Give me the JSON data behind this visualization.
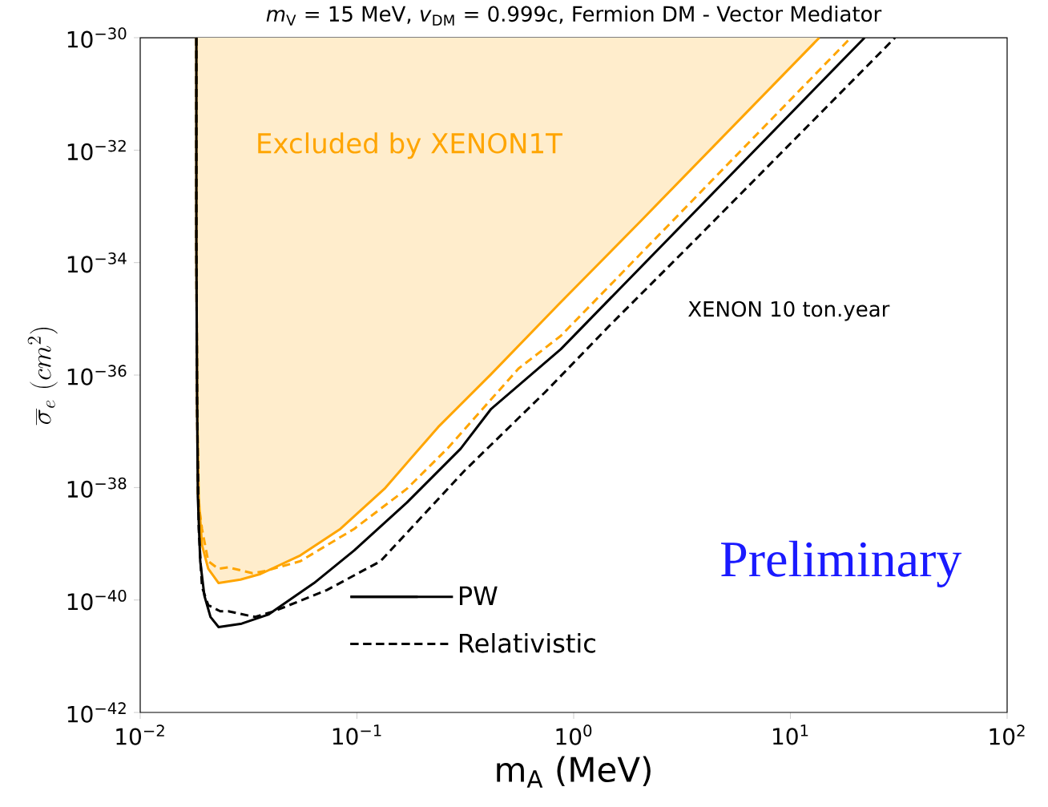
{
  "chart_data": {
    "type": "line",
    "title": "*m*$_{V}$ = 15 MeV, *v*$_{DM}$ = 0.999c, Fermion DM - Vector Mediator",
    "xlabel": "m$_{A}$ (MeV)",
    "ylabel": "\\overline{\\sigma}_e\\ (cm^2)",
    "log": "xy",
    "xlim": [
      0.01,
      100
    ],
    "ylim": [
      1e-42,
      1e-30
    ],
    "xticks": [
      {
        "value": 0.01,
        "label": "10$^{−2}$"
      },
      {
        "value": 0.1,
        "label": "10$^{−1}$"
      },
      {
        "value": 1,
        "label": "10$^{0}$"
      },
      {
        "value": 10,
        "label": "10$^{1}$"
      },
      {
        "value": 100,
        "label": "10$^{2}$"
      }
    ],
    "yticks": [
      {
        "value": 1e-42,
        "label": "10$^{−42}$"
      },
      {
        "value": 1e-40,
        "label": "10$^{−40}$"
      },
      {
        "value": 1e-38,
        "label": "10$^{−38}$"
      },
      {
        "value": 1e-36,
        "label": "10$^{−36}$"
      },
      {
        "value": 1e-34,
        "label": "10$^{−34}$"
      },
      {
        "value": 1e-32,
        "label": "10$^{−32}$"
      },
      {
        "value": 1e-30,
        "label": "10$^{−30}$"
      }
    ],
    "legend": "bottom left",
    "series": [
      {
        "type": "area",
        "color": "#ffa500",
        "line_style": "solid",
        "x": [
          0.01816,
          0.01816,
          0.0183,
          0.01862,
          0.01928,
          0.0206,
          0.023,
          0.029,
          0.0359,
          0.0548,
          0.0839,
          0.134,
          0.237,
          0.416,
          0.851,
          2.05,
          13.6
        ],
        "values": [
          1e-30,
          2.48e-34,
          3.5e-37,
          6.8e-39,
          9.5e-40,
          3.6e-40,
          2e-40,
          2.3e-40,
          2.9e-40,
          6.2e-40,
          1.84e-39,
          9.5e-39,
          1.19e-37,
          1.04e-36,
          1.8e-35,
          5.6e-34,
          1e-30
        ]
      },
      {
        "color": "#ffa500",
        "line_style": "dashed",
        "x": [
          0.01816,
          0.01816,
          0.0183,
          0.01845,
          0.01928,
          0.0206,
          0.0229,
          0.0255,
          0.033,
          0.038,
          0.0548,
          0.0971,
          0.17,
          0.261,
          0.556,
          0.873,
          19.0
        ],
        "values": [
          1e-30,
          2.48e-34,
          3.5e-37,
          6.8e-39,
          1.84e-39,
          4.9e-40,
          3.6e-40,
          3.8e-40,
          3e-40,
          3.3e-40,
          4.9e-40,
          1.84e-39,
          9.5e-39,
          4.9e-38,
          1.3e-36,
          5e-36,
          1e-30
        ]
      },
      {
        "name": "PW",
        "color": "#000000",
        "line_style": "solid",
        "x": [
          0.01816,
          0.01816,
          0.0183,
          0.01845,
          0.01892,
          0.01977,
          0.0211,
          0.023,
          0.0294,
          0.039,
          0.0634,
          0.0971,
          0.17,
          0.301,
          0.416,
          0.873,
          22.0
        ],
        "values": [
          1e-30,
          2.48e-34,
          3.5e-37,
          6.8e-39,
          4.9e-40,
          1.2e-40,
          5e-41,
          3.3e-41,
          3.8e-41,
          5.5e-41,
          2e-40,
          7.6e-40,
          5.4e-39,
          4.9e-38,
          2.5e-37,
          2.9e-36,
          1e-30
        ]
      },
      {
        "name": "Relativistic",
        "color": "#000000",
        "line_style": "dashed",
        "x": [
          0.01816,
          0.01816,
          0.0183,
          0.01862,
          0.01928,
          0.0206,
          0.0234,
          0.0255,
          0.0338,
          0.0414,
          0.0726,
          0.1285,
          0.314,
          0.736,
          1.455,
          3.8,
          30.4
        ],
        "values": [
          1e-30,
          2.48e-34,
          3.5e-37,
          1.84e-39,
          1.7e-40,
          8.1e-41,
          6.3e-41,
          6.3e-41,
          5e-41,
          6.3e-41,
          1.5e-40,
          4.9e-40,
          2e-38,
          4.9e-37,
          7.4e-36,
          3e-34,
          1e-30
        ]
      }
    ],
    "annotations": [
      "Excluded by XENON1T",
      "XENON 10 ton.year",
      "Preliminary"
    ]
  }
}
